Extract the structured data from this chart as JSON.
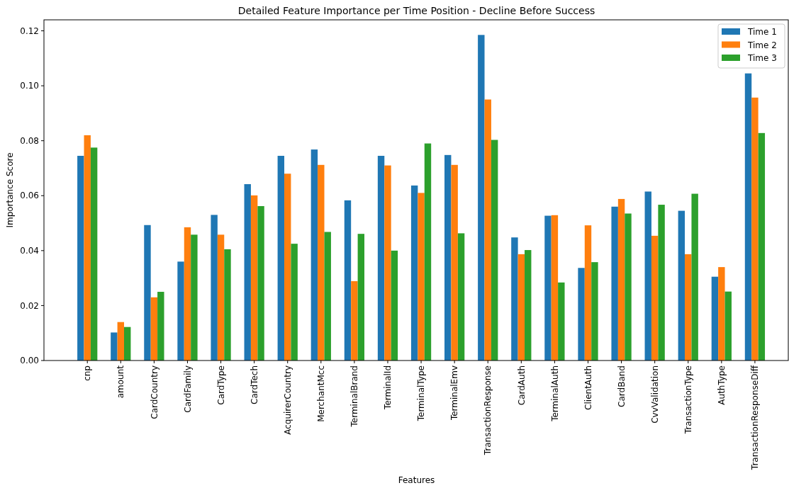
{
  "chart_data": {
    "type": "bar",
    "title": "Detailed Feature Importance per Time Position - Decline Before Success",
    "xlabel": "Features",
    "ylabel": "Importance Score",
    "categories": [
      "cnp",
      "amount",
      "CardCountry",
      "CardFamily",
      "CardType",
      "CardTech",
      "AcquirerCountry",
      "MerchantMcc",
      "TerminalBrand",
      "TerminalId",
      "TerminalType",
      "TerminalEmv",
      "TransactionResponse",
      "CardAuth",
      "TerminalAuth",
      "ClientAuth",
      "CardBand",
      "CvvValidation",
      "TransactionType",
      "AuthType",
      "TransactionResponseDiff"
    ],
    "series": [
      {
        "name": "Time 1",
        "color": "#1f77b4",
        "values": [
          0.0745,
          0.0102,
          0.0493,
          0.036,
          0.053,
          0.0642,
          0.0745,
          0.0768,
          0.0583,
          0.0745,
          0.0637,
          0.0748,
          0.1185,
          0.0448,
          0.0527,
          0.0337,
          0.056,
          0.0615,
          0.0545,
          0.0305,
          0.1045
        ]
      },
      {
        "name": "Time 2",
        "color": "#ff7f0e",
        "values": [
          0.082,
          0.014,
          0.023,
          0.0485,
          0.0458,
          0.0601,
          0.068,
          0.0712,
          0.0289,
          0.071,
          0.061,
          0.0712,
          0.095,
          0.0387,
          0.0529,
          0.0492,
          0.0588,
          0.0454,
          0.0387,
          0.034,
          0.0957
        ]
      },
      {
        "name": "Time 3",
        "color": "#2ca02c",
        "values": [
          0.0775,
          0.0122,
          0.025,
          0.0458,
          0.0405,
          0.0562,
          0.0425,
          0.0468,
          0.0461,
          0.04,
          0.079,
          0.0463,
          0.0803,
          0.0402,
          0.0284,
          0.0358,
          0.0535,
          0.0567,
          0.0607,
          0.0251,
          0.0828
        ]
      }
    ],
    "ylim": [
      0,
      0.124
    ],
    "yticks": [
      {
        "value": 0,
        "label": "0.00"
      },
      {
        "value": 0.02,
        "label": "0.02"
      },
      {
        "value": 0.04,
        "label": "0.04"
      },
      {
        "value": 0.06,
        "label": "0.06"
      },
      {
        "value": 0.08,
        "label": "0.08"
      },
      {
        "value": 0.1,
        "label": "0.10"
      },
      {
        "value": 0.12,
        "label": "0.12"
      }
    ],
    "legend": "top right"
  }
}
